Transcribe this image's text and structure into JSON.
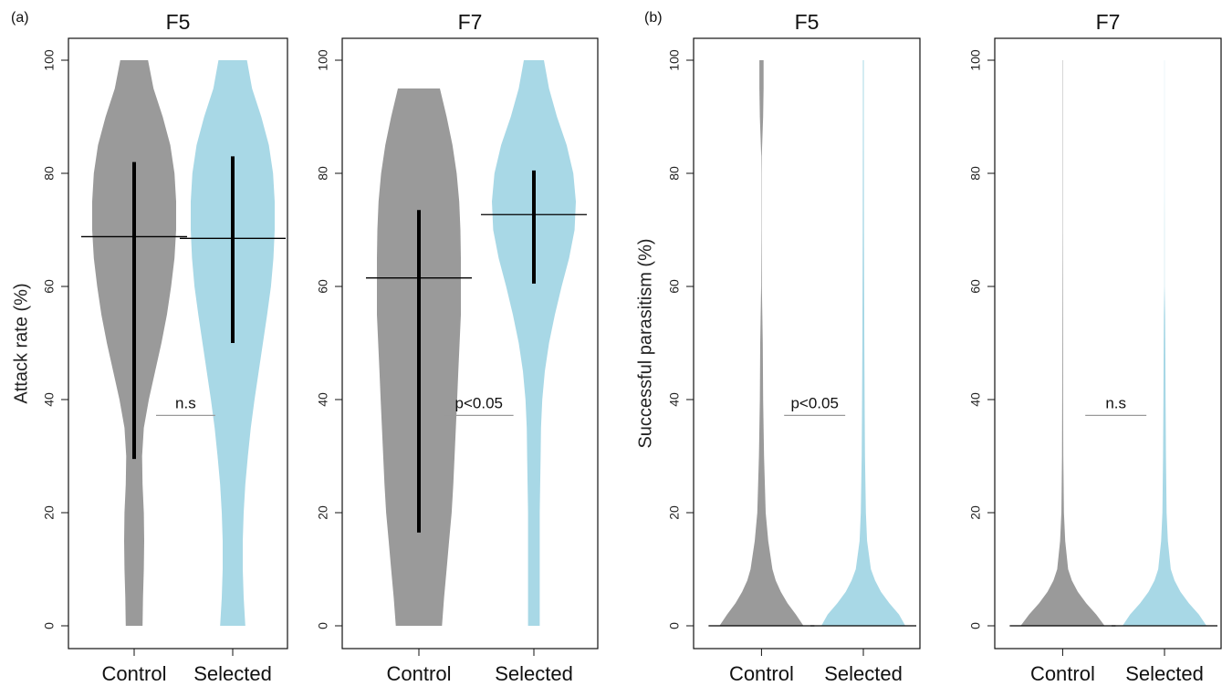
{
  "panel_labels": [
    "(a)",
    "(b)"
  ],
  "colors": {
    "control": "#9a9a9a",
    "selected": "#a8d8e6",
    "median": "#000000",
    "bracket": "#999999"
  },
  "chart_data": [
    {
      "type": "violin",
      "panel": "(a)",
      "title": "F5",
      "ylabel": "Attack rate (%)",
      "ylim": [
        0,
        100
      ],
      "yticks": [
        "0",
        "20",
        "40",
        "60",
        "80",
        "100"
      ],
      "categories": [
        "Control",
        "Selected"
      ],
      "annotation": "n.s",
      "series": [
        {
          "name": "Control",
          "min": 0,
          "max": 100,
          "median": 68.8,
          "whisker_low": 29.5,
          "whisker_high": 82,
          "profile": [
            [
              0,
              0.2
            ],
            [
              5,
              0.21
            ],
            [
              10,
              0.23
            ],
            [
              15,
              0.24
            ],
            [
              20,
              0.23
            ],
            [
              25,
              0.2
            ],
            [
              30,
              0.19
            ],
            [
              35,
              0.23
            ],
            [
              40,
              0.35
            ],
            [
              45,
              0.5
            ],
            [
              50,
              0.65
            ],
            [
              55,
              0.78
            ],
            [
              60,
              0.88
            ],
            [
              65,
              0.96
            ],
            [
              70,
              1.0
            ],
            [
              75,
              1.0
            ],
            [
              80,
              0.96
            ],
            [
              85,
              0.86
            ],
            [
              90,
              0.68
            ],
            [
              95,
              0.46
            ],
            [
              100,
              0.33
            ]
          ]
        },
        {
          "name": "Selected",
          "min": 0,
          "max": 100,
          "median": 68.5,
          "whisker_low": 50,
          "whisker_high": 83,
          "profile": [
            [
              0,
              0.3
            ],
            [
              5,
              0.26
            ],
            [
              10,
              0.24
            ],
            [
              15,
              0.24
            ],
            [
              20,
              0.26
            ],
            [
              25,
              0.3
            ],
            [
              30,
              0.36
            ],
            [
              35,
              0.43
            ],
            [
              40,
              0.52
            ],
            [
              45,
              0.62
            ],
            [
              50,
              0.72
            ],
            [
              55,
              0.82
            ],
            [
              60,
              0.91
            ],
            [
              65,
              0.97
            ],
            [
              70,
              1.0
            ],
            [
              75,
              1.0
            ],
            [
              80,
              0.96
            ],
            [
              85,
              0.86
            ],
            [
              90,
              0.68
            ],
            [
              95,
              0.46
            ],
            [
              100,
              0.34
            ]
          ]
        }
      ]
    },
    {
      "type": "violin",
      "panel": "(a)",
      "title": "F7",
      "ylabel": "",
      "ylim": [
        0,
        100
      ],
      "yticks": [
        "0",
        "20",
        "40",
        "60",
        "80",
        "100"
      ],
      "categories": [
        "Control",
        "Selected"
      ],
      "annotation": "p<0.05",
      "series": [
        {
          "name": "Control",
          "min": 0,
          "max": 95,
          "median": 61.5,
          "whisker_low": 16.5,
          "whisker_high": 73.5,
          "profile": [
            [
              0,
              0.55
            ],
            [
              5,
              0.6
            ],
            [
              10,
              0.66
            ],
            [
              15,
              0.72
            ],
            [
              20,
              0.78
            ],
            [
              25,
              0.82
            ],
            [
              30,
              0.85
            ],
            [
              35,
              0.88
            ],
            [
              40,
              0.91
            ],
            [
              45,
              0.94
            ],
            [
              50,
              0.97
            ],
            [
              55,
              1.0
            ],
            [
              60,
              1.0
            ],
            [
              65,
              1.0
            ],
            [
              70,
              0.99
            ],
            [
              75,
              0.96
            ],
            [
              80,
              0.9
            ],
            [
              85,
              0.8
            ],
            [
              90,
              0.66
            ],
            [
              95,
              0.5
            ]
          ]
        },
        {
          "name": "Selected",
          "min": 0,
          "max": 100,
          "median": 72.7,
          "whisker_low": 60.5,
          "whisker_high": 80.5,
          "profile": [
            [
              0,
              0.14
            ],
            [
              5,
              0.14
            ],
            [
              10,
              0.14
            ],
            [
              15,
              0.14
            ],
            [
              20,
              0.14
            ],
            [
              25,
              0.15
            ],
            [
              30,
              0.16
            ],
            [
              35,
              0.17
            ],
            [
              40,
              0.2
            ],
            [
              45,
              0.26
            ],
            [
              50,
              0.36
            ],
            [
              55,
              0.5
            ],
            [
              60,
              0.66
            ],
            [
              65,
              0.84
            ],
            [
              70,
              0.97
            ],
            [
              75,
              1.0
            ],
            [
              80,
              0.94
            ],
            [
              85,
              0.78
            ],
            [
              90,
              0.55
            ],
            [
              95,
              0.36
            ],
            [
              100,
              0.24
            ]
          ]
        }
      ]
    },
    {
      "type": "violin",
      "panel": "(b)",
      "title": "F5",
      "ylabel": "Successful parasitism (%)",
      "ylim": [
        0,
        100
      ],
      "yticks": [
        "0",
        "20",
        "40",
        "60",
        "80",
        "100"
      ],
      "categories": [
        "Control",
        "Selected"
      ],
      "annotation": "p<0.05",
      "series": [
        {
          "name": "Control",
          "min": 0,
          "max": 100,
          "median": 0,
          "profile": [
            [
              0,
              1.0
            ],
            [
              2,
              0.82
            ],
            [
              4,
              0.62
            ],
            [
              6,
              0.46
            ],
            [
              8,
              0.34
            ],
            [
              10,
              0.26
            ],
            [
              15,
              0.16
            ],
            [
              20,
              0.1
            ],
            [
              25,
              0.08
            ],
            [
              30,
              0.06
            ],
            [
              40,
              0.04
            ],
            [
              50,
              0.03
            ],
            [
              55,
              0.02
            ],
            [
              60,
              0.008
            ],
            [
              70,
              0.004
            ],
            [
              80,
              0.004
            ],
            [
              83,
              0.006
            ],
            [
              90,
              0.04
            ],
            [
              95,
              0.05
            ],
            [
              100,
              0.05
            ]
          ]
        },
        {
          "name": "Selected",
          "min": 0,
          "max": 100,
          "median": 0,
          "profile": [
            [
              0,
              1.0
            ],
            [
              2,
              0.85
            ],
            [
              4,
              0.62
            ],
            [
              6,
              0.42
            ],
            [
              8,
              0.28
            ],
            [
              10,
              0.18
            ],
            [
              15,
              0.09
            ],
            [
              20,
              0.06
            ],
            [
              30,
              0.04
            ],
            [
              40,
              0.03
            ],
            [
              50,
              0.025
            ],
            [
              60,
              0.02
            ],
            [
              70,
              0.015
            ],
            [
              80,
              0.012
            ],
            [
              90,
              0.01
            ],
            [
              100,
              0.01
            ]
          ]
        }
      ]
    },
    {
      "type": "violin",
      "panel": "(b)",
      "title": "F7",
      "ylabel": "",
      "ylim": [
        0,
        100
      ],
      "yticks": [
        "0",
        "20",
        "40",
        "60",
        "80",
        "100"
      ],
      "categories": [
        "Control",
        "Selected"
      ],
      "annotation": "n.s",
      "series": [
        {
          "name": "Control",
          "min": 0,
          "max": 100,
          "median": 0,
          "profile": [
            [
              0,
              1.0
            ],
            [
              2,
              0.8
            ],
            [
              4,
              0.56
            ],
            [
              6,
              0.36
            ],
            [
              8,
              0.22
            ],
            [
              10,
              0.13
            ],
            [
              15,
              0.06
            ],
            [
              20,
              0.03
            ],
            [
              30,
              0.015
            ],
            [
              40,
              0.01
            ],
            [
              50,
              0.008
            ],
            [
              60,
              0.006
            ],
            [
              70,
              0.005
            ],
            [
              80,
              0.005
            ],
            [
              90,
              0.004
            ],
            [
              100,
              0.004
            ]
          ]
        },
        {
          "name": "Selected",
          "min": 0,
          "max": 100,
          "median": 0,
          "profile": [
            [
              0,
              1.0
            ],
            [
              2,
              0.82
            ],
            [
              4,
              0.58
            ],
            [
              6,
              0.38
            ],
            [
              8,
              0.24
            ],
            [
              10,
              0.15
            ],
            [
              15,
              0.08
            ],
            [
              20,
              0.05
            ],
            [
              30,
              0.035
            ],
            [
              40,
              0.025
            ],
            [
              50,
              0.02
            ],
            [
              55,
              0.015
            ],
            [
              60,
              0.005
            ],
            [
              70,
              0.004
            ],
            [
              80,
              0.003
            ],
            [
              90,
              0.003
            ],
            [
              100,
              0.003
            ]
          ]
        }
      ]
    }
  ]
}
